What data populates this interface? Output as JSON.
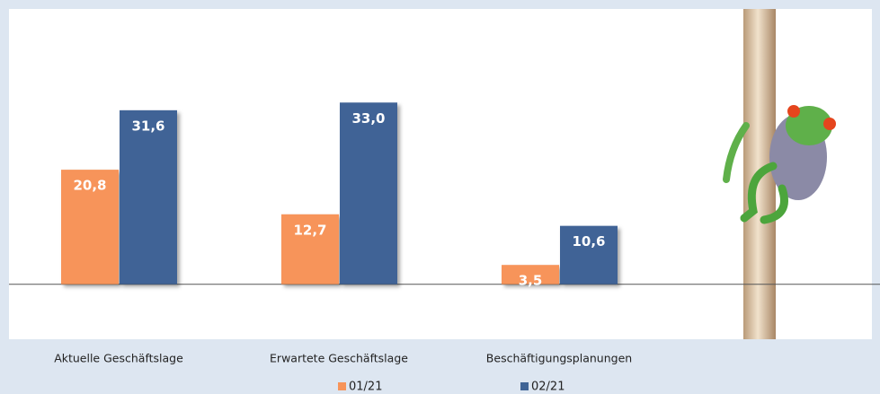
{
  "chart_data": {
    "type": "bar",
    "categories": [
      "Aktuelle Geschäftslage",
      "Erwartete Geschäftslage",
      "Beschäftigungsplanungen"
    ],
    "series": [
      {
        "name": "01/21",
        "color": "#f7945a",
        "values": [
          20.8,
          12.7,
          3.5
        ],
        "value_labels": [
          "20,8",
          "12,7",
          "3,5"
        ]
      },
      {
        "name": "02/21",
        "color": "#3f6496",
        "values": [
          31.6,
          33.0,
          10.6
        ],
        "value_labels": [
          "31,6",
          "33,0",
          "10,6"
        ]
      }
    ],
    "ylim": [
      -10,
      50
    ]
  }
}
